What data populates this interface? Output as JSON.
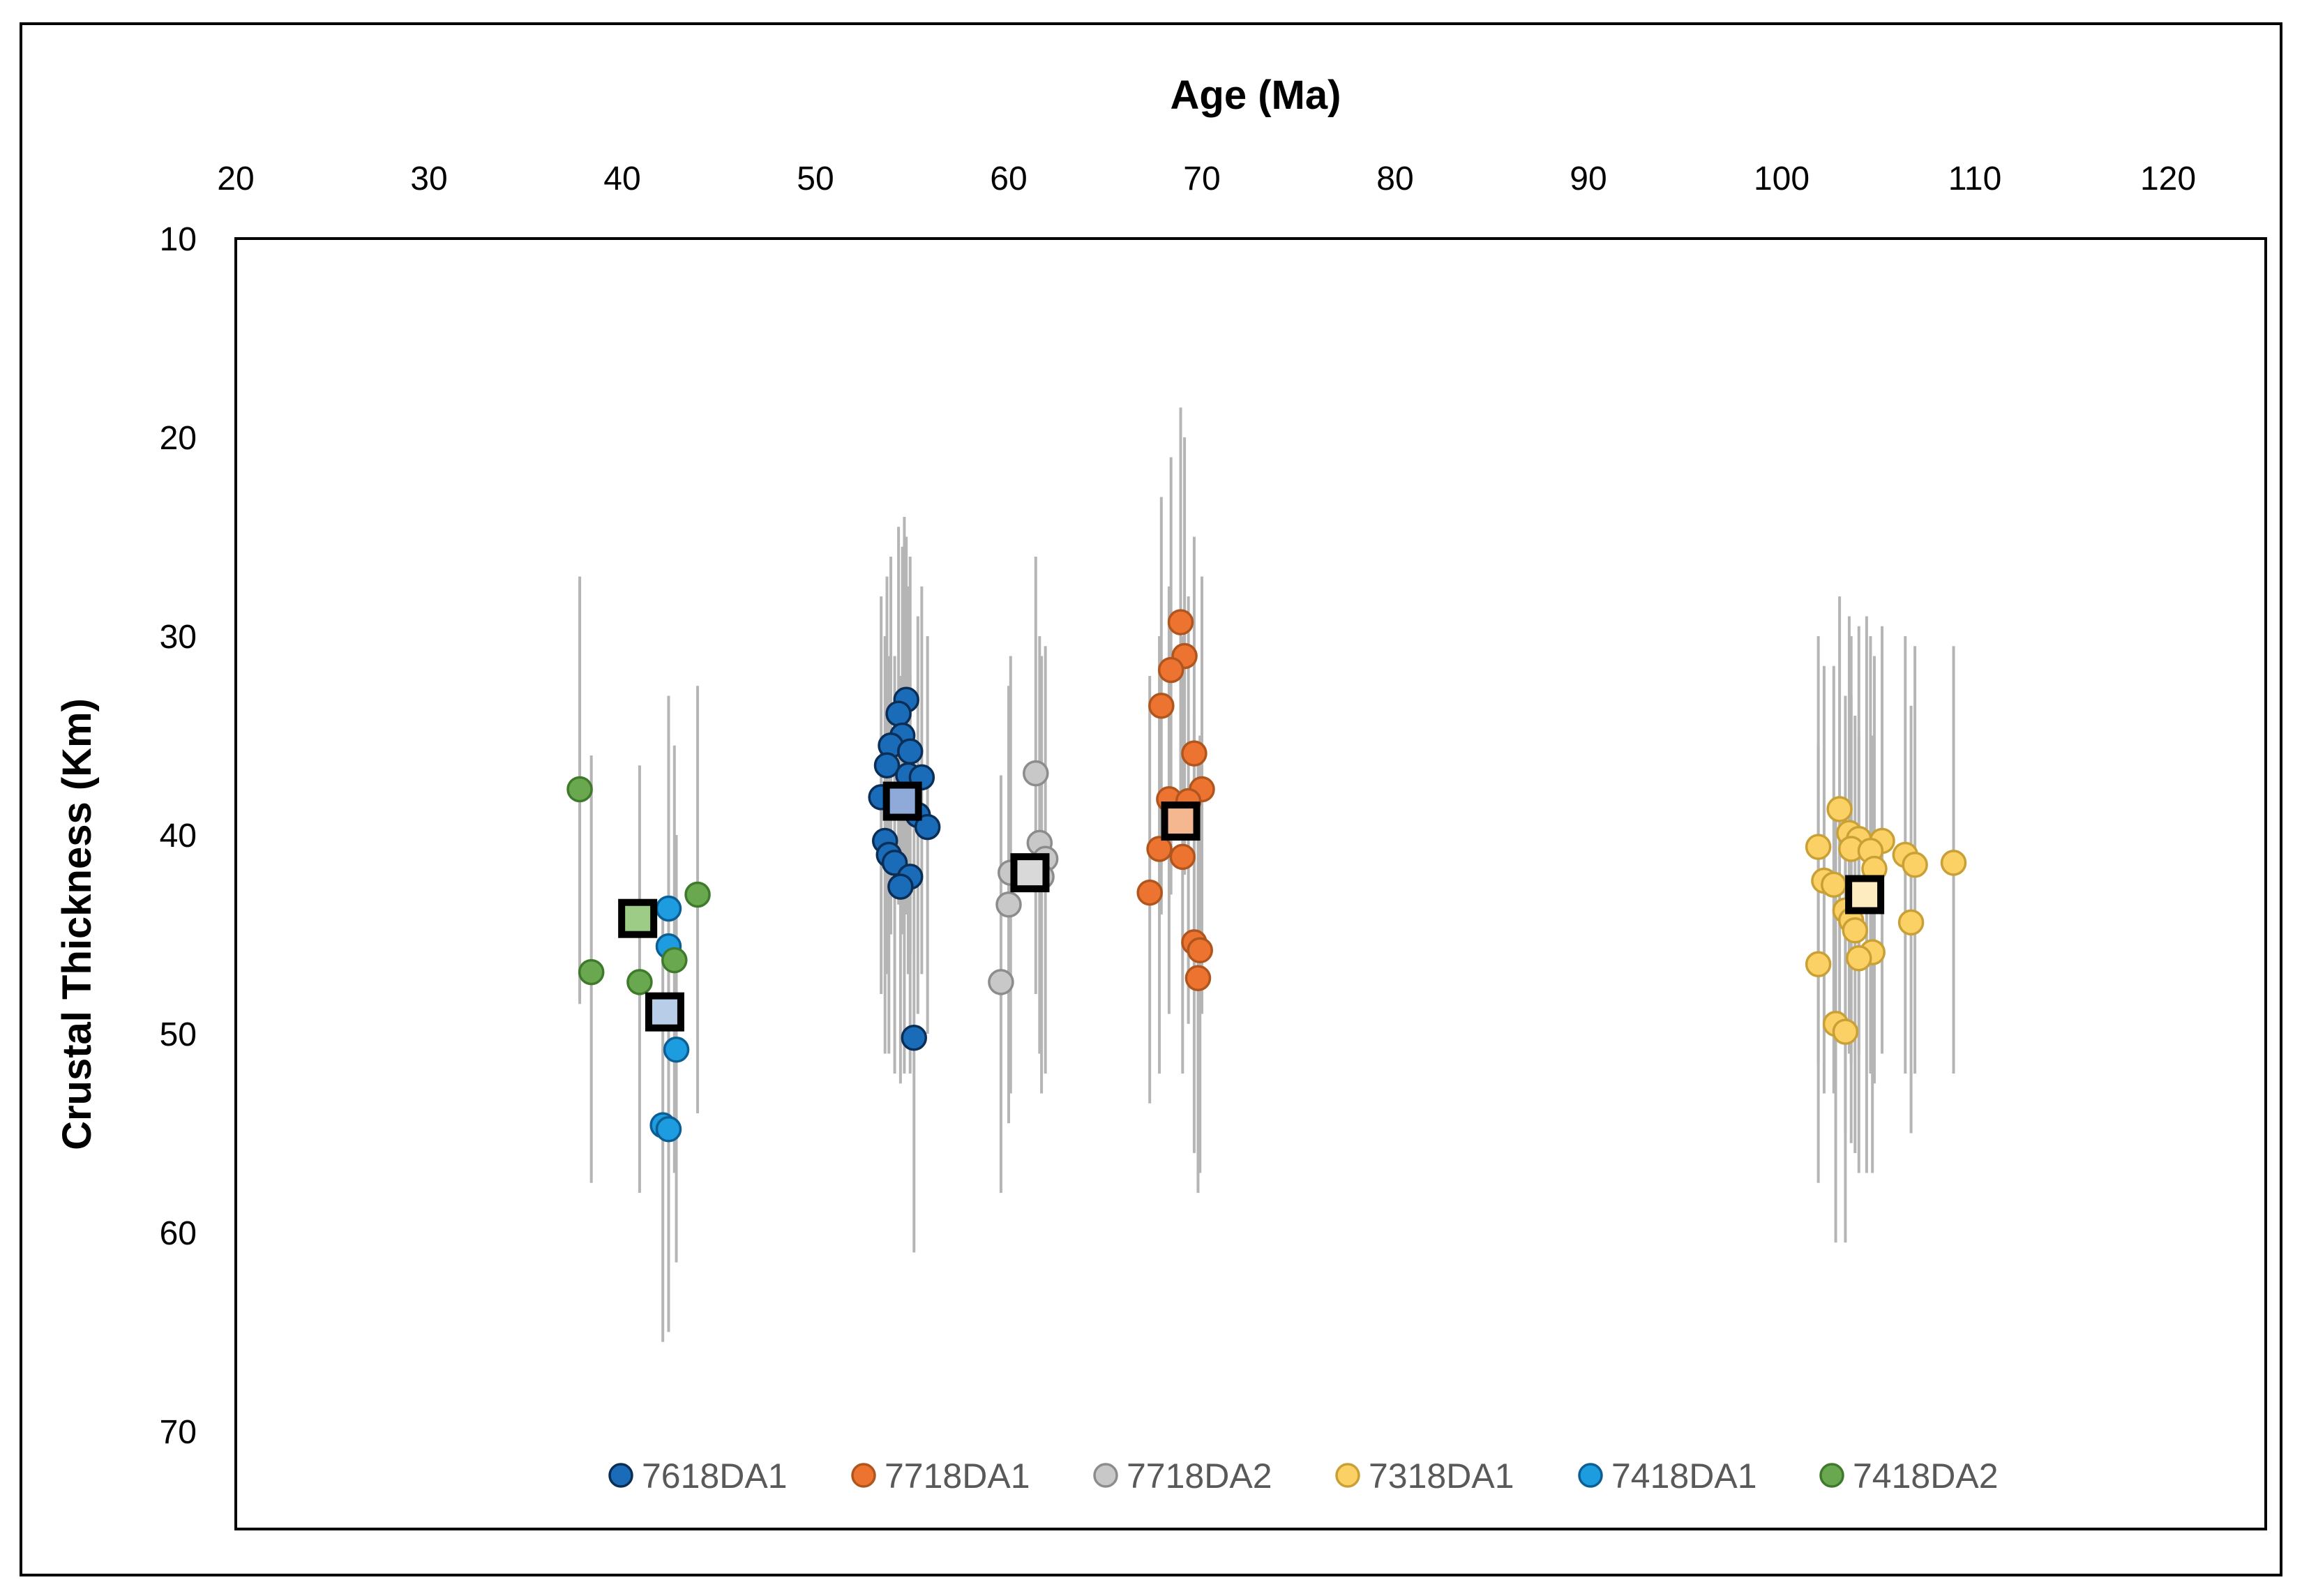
{
  "chart_data": {
    "type": "scatter",
    "title": "",
    "xlabel": "Age (Ma)",
    "ylabel": "Crustal Thickness (Km)",
    "xlim": [
      20,
      125
    ],
    "ylim": [
      10,
      75
    ],
    "y_inverted": true,
    "x_axis_position": "top",
    "grid": false,
    "legend_position": "bottom-inside",
    "x_ticks": [
      "20",
      "30",
      "40",
      "50",
      "60",
      "70",
      "80",
      "90",
      "100",
      "110",
      "120"
    ],
    "y_ticks": [
      "10",
      "20",
      "30",
      "40",
      "50",
      "60",
      "70"
    ],
    "x_tick_values": [
      20,
      30,
      40,
      50,
      60,
      70,
      80,
      90,
      100,
      110,
      120
    ],
    "y_tick_values": [
      10,
      20,
      30,
      40,
      50,
      60,
      70
    ],
    "series": [
      {
        "name": "7618DA1",
        "color": "#1a6bb8",
        "edge": "#0a2e55",
        "mean": {
          "x": 54.5,
          "y": 38.3
        },
        "mean_fill": "#8fa9d8",
        "points": [
          {
            "x": 54.7,
            "y": 33.2,
            "lo": 25.0,
            "hi": 44.0
          },
          {
            "x": 54.3,
            "y": 33.9,
            "lo": 24.5,
            "hi": 43.5
          },
          {
            "x": 54.5,
            "y": 35.0,
            "lo": 25.5,
            "hi": 45.0
          },
          {
            "x": 53.9,
            "y": 35.5,
            "lo": 26.0,
            "hi": 45.0
          },
          {
            "x": 54.9,
            "y": 35.8,
            "lo": 26.0,
            "hi": 46.0
          },
          {
            "x": 53.7,
            "y": 36.5,
            "lo": 27.0,
            "hi": 47.0
          },
          {
            "x": 54.8,
            "y": 37.0,
            "lo": 27.5,
            "hi": 47.0
          },
          {
            "x": 55.5,
            "y": 37.1,
            "lo": 27.5,
            "hi": 47.0
          },
          {
            "x": 53.4,
            "y": 38.1,
            "lo": 28.0,
            "hi": 48.0
          },
          {
            "x": 54.6,
            "y": 38.5,
            "lo": 24.0,
            "hi": 52.0
          },
          {
            "x": 55.3,
            "y": 39.0,
            "lo": 29.0,
            "hi": 49.0
          },
          {
            "x": 55.8,
            "y": 39.6,
            "lo": 30.0,
            "hi": 50.0
          },
          {
            "x": 53.6,
            "y": 40.3,
            "lo": 30.0,
            "hi": 51.0
          },
          {
            "x": 53.8,
            "y": 41.0,
            "lo": 31.0,
            "hi": 51.0
          },
          {
            "x": 54.1,
            "y": 41.4,
            "lo": 31.0,
            "hi": 52.0
          },
          {
            "x": 54.9,
            "y": 42.1,
            "lo": 32.0,
            "hi": 52.0
          },
          {
            "x": 54.4,
            "y": 42.6,
            "lo": 32.0,
            "hi": 52.5
          },
          {
            "x": 55.1,
            "y": 50.2,
            "lo": 39.5,
            "hi": 61.0
          }
        ]
      },
      {
        "name": "7718DA1",
        "color": "#ec7430",
        "edge": "#b0551d",
        "mean": {
          "x": 68.9,
          "y": 39.3
        },
        "mean_fill": "#f5b78f",
        "points": [
          {
            "x": 68.9,
            "y": 29.3,
            "lo": 18.5,
            "hi": 40.0
          },
          {
            "x": 69.1,
            "y": 31.0,
            "lo": 20.0,
            "hi": 42.0
          },
          {
            "x": 68.4,
            "y": 31.7,
            "lo": 21.0,
            "hi": 43.0
          },
          {
            "x": 67.9,
            "y": 33.5,
            "lo": 23.0,
            "hi": 44.0
          },
          {
            "x": 69.6,
            "y": 35.9,
            "lo": 25.0,
            "hi": 47.0
          },
          {
            "x": 70.0,
            "y": 37.7,
            "lo": 27.0,
            "hi": 49.0
          },
          {
            "x": 68.3,
            "y": 38.2,
            "lo": 27.5,
            "hi": 49.0
          },
          {
            "x": 69.3,
            "y": 38.3,
            "lo": 28.0,
            "hi": 49.5
          },
          {
            "x": 67.8,
            "y": 40.7,
            "lo": 30.0,
            "hi": 52.0
          },
          {
            "x": 69.0,
            "y": 41.1,
            "lo": 30.0,
            "hi": 52.0
          },
          {
            "x": 67.3,
            "y": 42.9,
            "lo": 32.0,
            "hi": 53.5
          },
          {
            "x": 69.6,
            "y": 45.4,
            "lo": 34.0,
            "hi": 56.0
          },
          {
            "x": 69.9,
            "y": 45.8,
            "lo": 35.0,
            "hi": 57.0
          },
          {
            "x": 69.8,
            "y": 47.2,
            "lo": 36.0,
            "hi": 58.0
          }
        ]
      },
      {
        "name": "7718DA2",
        "color": "#c8c8c8",
        "edge": "#8c8c8c",
        "mean": {
          "x": 61.1,
          "y": 41.9
        },
        "mean_fill": "#d9d9d9",
        "points": [
          {
            "x": 61.4,
            "y": 36.9,
            "lo": 26.0,
            "hi": 48.0
          },
          {
            "x": 61.6,
            "y": 40.4,
            "lo": 30.0,
            "hi": 51.0
          },
          {
            "x": 61.9,
            "y": 41.2,
            "lo": 30.5,
            "hi": 52.0
          },
          {
            "x": 60.1,
            "y": 41.9,
            "lo": 31.0,
            "hi": 53.0
          },
          {
            "x": 61.7,
            "y": 42.1,
            "lo": 31.0,
            "hi": 53.0
          },
          {
            "x": 60.0,
            "y": 43.5,
            "lo": 32.5,
            "hi": 54.5
          },
          {
            "x": 59.6,
            "y": 47.4,
            "lo": 37.0,
            "hi": 58.0
          }
        ]
      },
      {
        "name": "7318DA1",
        "color": "#fbd065",
        "edge": "#c9a035",
        "mean": {
          "x": 104.3,
          "y": 43.0
        },
        "mean_fill": "#fdecc0",
        "points": [
          {
            "x": 103.0,
            "y": 38.7,
            "lo": 28.0,
            "hi": 50.0
          },
          {
            "x": 103.5,
            "y": 39.9,
            "lo": 29.0,
            "hi": 51.0
          },
          {
            "x": 104.0,
            "y": 40.2,
            "lo": 29.5,
            "hi": 51.0
          },
          {
            "x": 105.2,
            "y": 40.3,
            "lo": 29.5,
            "hi": 51.0
          },
          {
            "x": 101.9,
            "y": 40.6,
            "lo": 30.0,
            "hi": 51.5
          },
          {
            "x": 103.6,
            "y": 40.7,
            "lo": 30.0,
            "hi": 51.5
          },
          {
            "x": 104.6,
            "y": 40.8,
            "lo": 30.0,
            "hi": 52.0
          },
          {
            "x": 106.4,
            "y": 41.0,
            "lo": 30.0,
            "hi": 52.0
          },
          {
            "x": 108.9,
            "y": 41.4,
            "lo": 30.5,
            "hi": 52.0
          },
          {
            "x": 106.9,
            "y": 41.5,
            "lo": 30.5,
            "hi": 52.0
          },
          {
            "x": 104.8,
            "y": 41.7,
            "lo": 31.0,
            "hi": 52.5
          },
          {
            "x": 102.2,
            "y": 42.3,
            "lo": 31.5,
            "hi": 53.0
          },
          {
            "x": 102.7,
            "y": 42.5,
            "lo": 31.5,
            "hi": 53.0
          },
          {
            "x": 104.4,
            "y": 42.8,
            "lo": 29.0,
            "hi": 57.0
          },
          {
            "x": 103.3,
            "y": 43.8,
            "lo": 33.0,
            "hi": 55.0
          },
          {
            "x": 103.6,
            "y": 44.3,
            "lo": 33.0,
            "hi": 55.5
          },
          {
            "x": 103.8,
            "y": 44.8,
            "lo": 34.0,
            "hi": 56.0
          },
          {
            "x": 106.7,
            "y": 44.4,
            "lo": 33.5,
            "hi": 55.0
          },
          {
            "x": 104.7,
            "y": 45.9,
            "lo": 35.0,
            "hi": 57.0
          },
          {
            "x": 104.0,
            "y": 46.2,
            "lo": 35.0,
            "hi": 57.0
          },
          {
            "x": 101.9,
            "y": 46.5,
            "lo": 35.5,
            "hi": 57.5
          },
          {
            "x": 102.8,
            "y": 49.5,
            "lo": 38.5,
            "hi": 60.5
          },
          {
            "x": 103.3,
            "y": 49.9,
            "lo": 39.0,
            "hi": 60.5
          }
        ]
      },
      {
        "name": "7418DA1",
        "color": "#1e9ce0",
        "edge": "#0c5f95",
        "mean": {
          "x": 42.2,
          "y": 48.9
        },
        "mean_fill": "#b8cde8",
        "points": [
          {
            "x": 42.4,
            "y": 43.7,
            "lo": 33.0,
            "hi": 54.0
          },
          {
            "x": 42.4,
            "y": 45.6,
            "lo": 35.0,
            "hi": 56.0
          },
          {
            "x": 42.8,
            "y": 50.8,
            "lo": 40.0,
            "hi": 61.5
          },
          {
            "x": 42.1,
            "y": 54.6,
            "lo": 43.5,
            "hi": 65.5
          },
          {
            "x": 42.4,
            "y": 54.8,
            "lo": 44.0,
            "hi": 65.0
          }
        ]
      },
      {
        "name": "7418DA2",
        "color": "#6aa84f",
        "edge": "#3f7a2c",
        "mean": {
          "x": 40.8,
          "y": 44.2
        },
        "mean_fill": "#9ccc86",
        "points": [
          {
            "x": 37.8,
            "y": 37.7,
            "lo": 27.0,
            "hi": 48.5
          },
          {
            "x": 43.9,
            "y": 43.0,
            "lo": 32.5,
            "hi": 54.0
          },
          {
            "x": 42.7,
            "y": 46.3,
            "lo": 35.5,
            "hi": 57.0
          },
          {
            "x": 38.4,
            "y": 46.9,
            "lo": 36.0,
            "hi": 57.5
          },
          {
            "x": 40.9,
            "y": 47.4,
            "lo": 36.5,
            "hi": 58.0
          }
        ]
      }
    ]
  }
}
